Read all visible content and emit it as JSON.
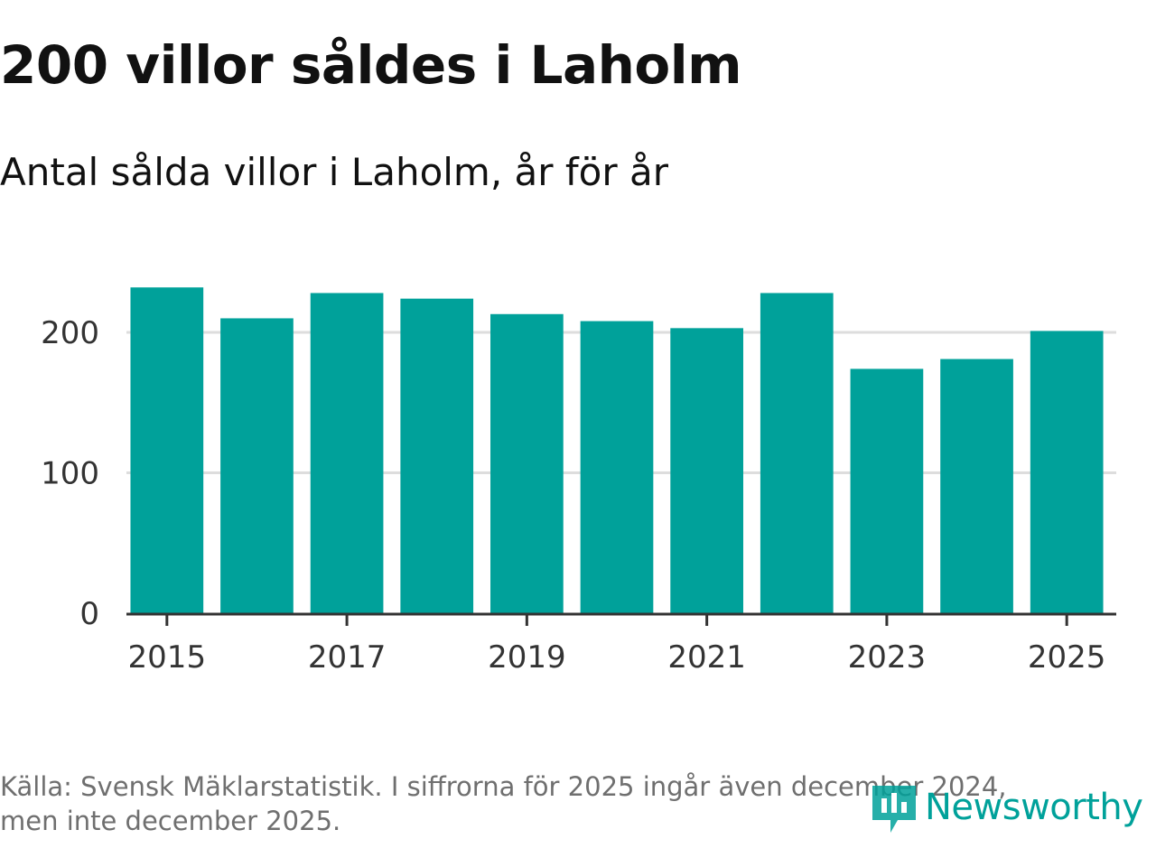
{
  "header": {
    "title": "200 villor såldes i Laholm",
    "subtitle": "Antal sålda villor i Laholm, år för år"
  },
  "footer": {
    "source_line1": "Källa: Svensk Mäklarstatistik. I siffrorna för 2025 ingår även december 2024,",
    "source_line2": "men inte december 2025."
  },
  "brand": {
    "name": "Newsworthy",
    "icon": "newsworthy-logo-icon"
  },
  "colors": {
    "bar": "#00a19a",
    "grid": "#dddddd",
    "axis": "#333333",
    "tick_text": "#333333",
    "footer_text": "#6f6f6f"
  },
  "chart_data": {
    "type": "bar",
    "title": "200 villor såldes i Laholm",
    "subtitle": "Antal sålda villor i Laholm, år för år",
    "xlabel": "",
    "ylabel": "",
    "categories": [
      "2015",
      "2016",
      "2017",
      "2018",
      "2019",
      "2020",
      "2021",
      "2022",
      "2023",
      "2024",
      "2025"
    ],
    "values": [
      232,
      210,
      228,
      224,
      213,
      208,
      203,
      228,
      174,
      181,
      201
    ],
    "ylim": [
      0,
      250
    ],
    "y_ticks": [
      0,
      100,
      200
    ],
    "x_tick_labels": [
      "2015",
      "2017",
      "2019",
      "2021",
      "2023",
      "2025"
    ],
    "grid": true,
    "legend": "none"
  }
}
